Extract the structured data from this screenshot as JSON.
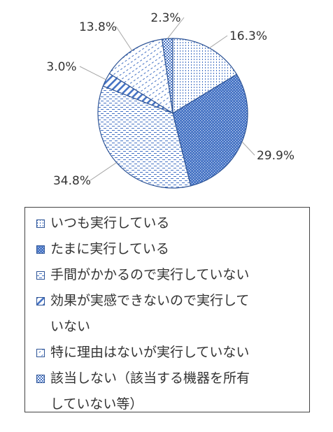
{
  "chart_data": {
    "type": "pie",
    "categories": [
      "いつも実行している",
      "たまに実行している",
      "手間がかかるので実行していない",
      "効果が実感できないので実行していない",
      "特に理由はないが実行していない",
      "該当しない（該当する機器を所有していない等）"
    ],
    "values": [
      16.3,
      29.9,
      34.8,
      3.0,
      13.8,
      2.3
    ],
    "data_labels": [
      "16.3%",
      "29.9%",
      "34.8%",
      "3.0%",
      "13.8%",
      "2.3%"
    ],
    "legend_lines": [
      [
        "いつも実行している"
      ],
      [
        "たまに実行している"
      ],
      [
        "手間がかかるので実行していない"
      ],
      [
        "効果が実感できないので実行して",
        "いない"
      ],
      [
        "特に理由はないが実行していない"
      ],
      [
        "該当しない（該当する機器を所有",
        "していない等）"
      ]
    ],
    "patterns": [
      "vertical-dots",
      "blue-dots",
      "dashes",
      "diagonal-stripes",
      "dash-diagonal",
      "checker"
    ],
    "colors": {
      "stroke": "#2f5597",
      "pattern_blue": "#4472c4",
      "leader": "#a6a6a6",
      "legend_border": "#444444",
      "text": "#333333"
    },
    "legend_position": "bottom",
    "start_angle": "12 o'clock",
    "direction": "clockwise"
  }
}
